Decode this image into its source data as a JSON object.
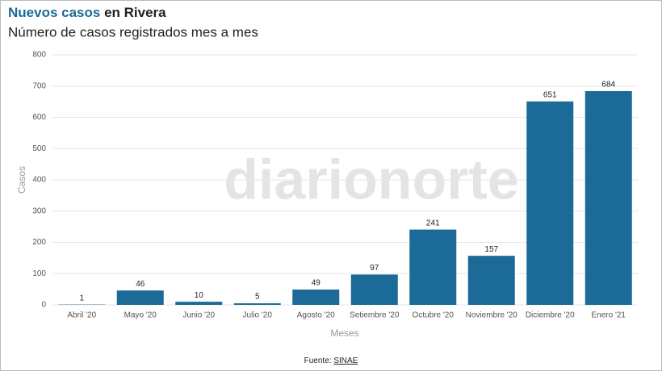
{
  "chart_data": {
    "type": "bar",
    "title": {
      "highlight": "Nuevos casos",
      "rest": "en Rivera"
    },
    "subtitle": "Número de casos registrados mes a mes",
    "x_label": "Meses",
    "y_label": "Casos",
    "categories": [
      "Abril '20",
      "Mayo '20",
      "Junio '20",
      "Julio '20",
      "Agosto '20",
      "Setiembre '20",
      "Octubre '20",
      "Noviembre '20",
      "Diciembre '20",
      "Enero '21"
    ],
    "values": [
      1,
      46,
      10,
      5,
      49,
      97,
      241,
      157,
      651,
      684
    ],
    "color": "#1b6a97",
    "ylim": [
      0,
      800
    ],
    "yticks": [
      0,
      100,
      200,
      300,
      400,
      500,
      600,
      700,
      800
    ],
    "grid": true,
    "source": {
      "label": "Fuente:",
      "link": "SINAE"
    },
    "watermark": "diarionorte"
  }
}
